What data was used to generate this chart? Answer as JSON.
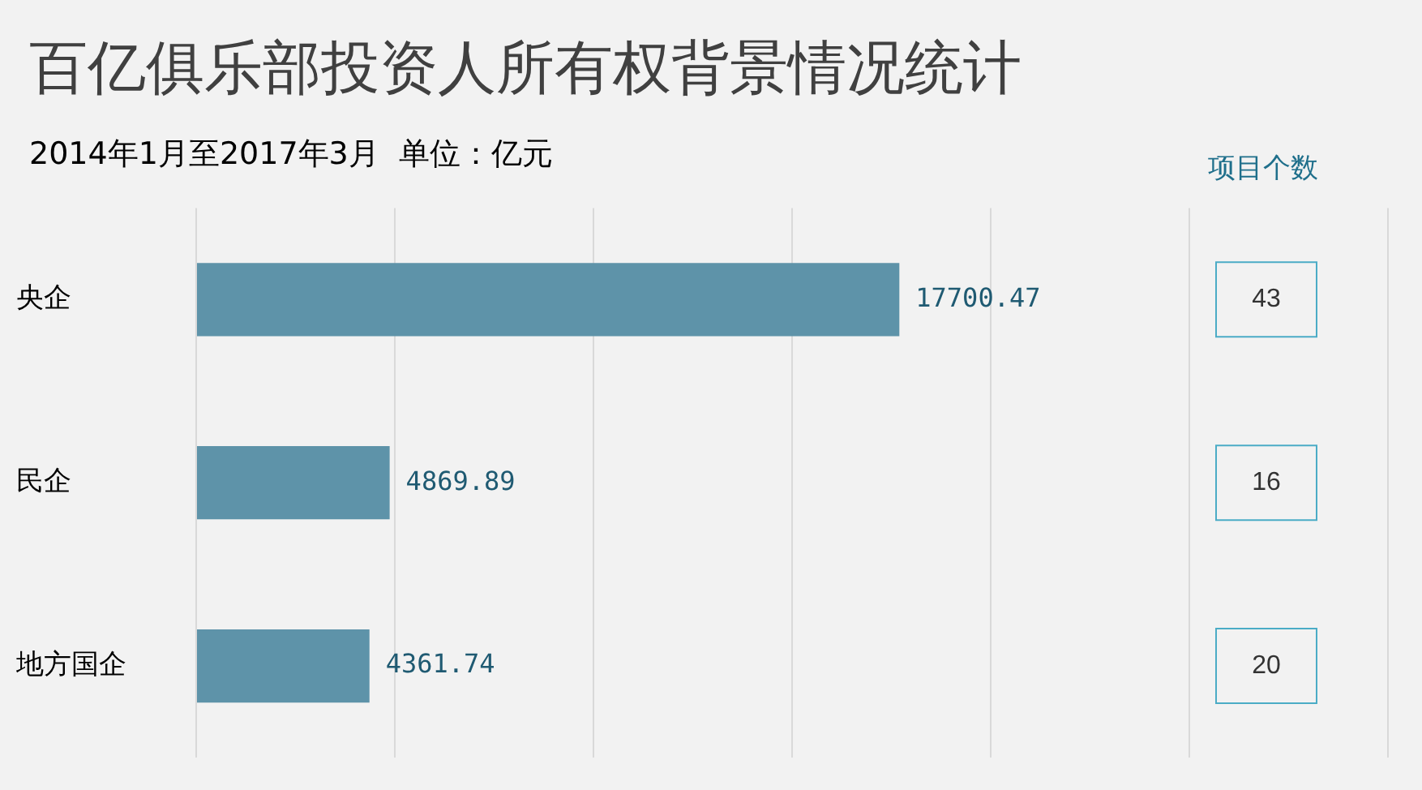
{
  "chart_data": {
    "type": "bar",
    "orientation": "horizontal",
    "title": "百亿俱乐部投资人所有权背景情况统计",
    "subtitle": "2014年1月至2017年3月  单位：亿元",
    "categories": [
      "央企",
      "民企",
      "地方国企"
    ],
    "values": [
      17700.47,
      4869.89,
      4361.74
    ],
    "color": "#5e93a9",
    "data_labels": true,
    "xlim": [
      0,
      30000
    ],
    "xticks": [
      {
        "value": 0,
        "label": null
      },
      {
        "value": 5000,
        "label": null
      },
      {
        "value": 10000,
        "label": null
      },
      {
        "value": 15000,
        "label": null
      },
      {
        "value": 20000,
        "label": null
      },
      {
        "value": 25000,
        "label": null
      },
      {
        "value": 30000,
        "label": null
      }
    ],
    "grid": "x",
    "tick_labels": "y",
    "legend": false,
    "annotations": [
      "项目个数",
      "43",
      "16",
      "20"
    ]
  }
}
